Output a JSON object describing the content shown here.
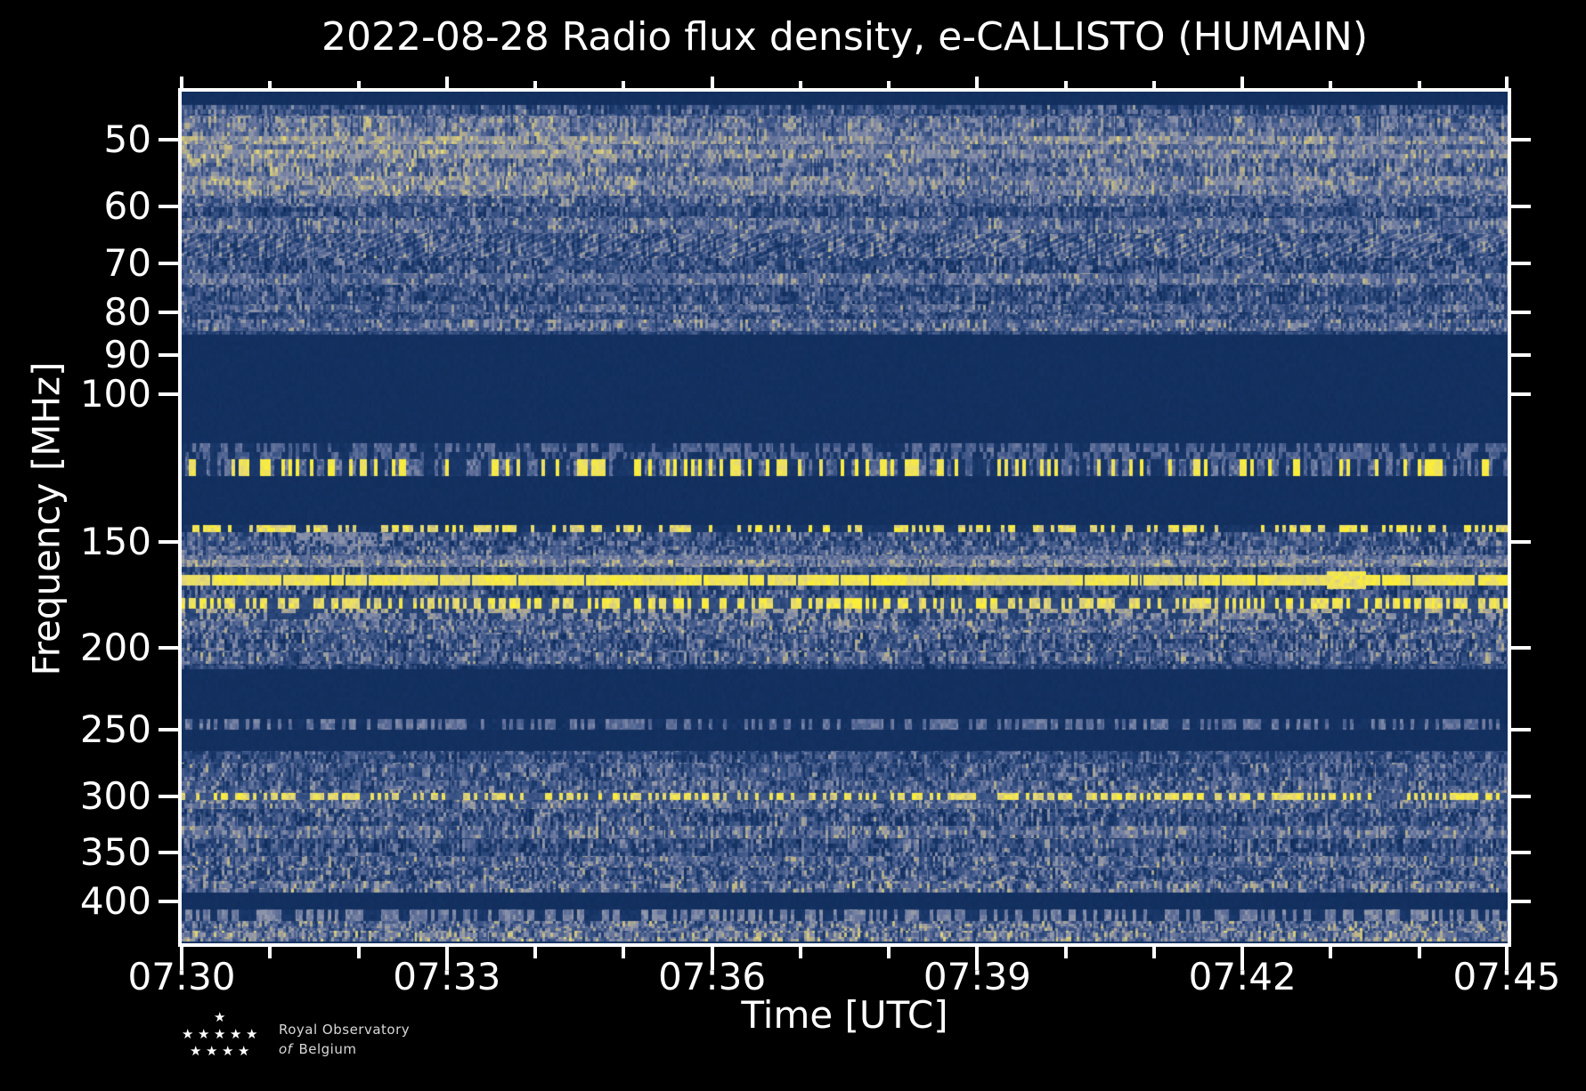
{
  "title": "2022-08-28 Radio flux density, e-CALLISTO (HUMAIN)",
  "axes": {
    "x_label": "Time [UTC]",
    "y_label": "Frequency [MHz]"
  },
  "logo": {
    "line1": "Royal Observatory",
    "line2_word1": "of",
    "line2_word2": "Belgium",
    "star_rows": [
      1,
      5,
      4
    ]
  },
  "chart_data": {
    "type": "heatmap",
    "subtype": "radio-spectrogram",
    "title": "2022-08-28 Radio flux density, e-CALLISTO (HUMAIN)",
    "xlabel": "Time [UTC]",
    "ylabel": "Frequency [MHz]",
    "time_start_utc": "07:30",
    "time_end_utc": "07:45",
    "duration_min": 15,
    "x_ticks": [
      {
        "min": 0,
        "label": "07:30"
      },
      {
        "min": 3,
        "label": "07:33"
      },
      {
        "min": 6,
        "label": "07:36"
      },
      {
        "min": 9,
        "label": "07:39"
      },
      {
        "min": 12,
        "label": "07:42"
      },
      {
        "min": 15,
        "label": "07:45"
      }
    ],
    "x_minor_step_min": 1,
    "y_scale": "log",
    "y_inverted": true,
    "freq_min_mhz": 43.8,
    "freq_max_mhz": 448.5,
    "y_ticks": [
      {
        "f": 50,
        "label": "50"
      },
      {
        "f": 60,
        "label": "60"
      },
      {
        "f": 70,
        "label": "70"
      },
      {
        "f": 80,
        "label": "80"
      },
      {
        "f": 90,
        "label": "90"
      },
      {
        "f": 100,
        "label": "100"
      },
      {
        "f": 150,
        "label": "150"
      },
      {
        "f": 200,
        "label": "200"
      },
      {
        "f": 250,
        "label": "250"
      },
      {
        "f": 300,
        "label": "300"
      },
      {
        "f": 350,
        "label": "350"
      },
      {
        "f": 400,
        "label": "400"
      }
    ],
    "palette": [
      [
        0.0,
        "#0f2c5a"
      ],
      [
        0.18,
        "#1c3a6d"
      ],
      [
        0.35,
        "#3a5486"
      ],
      [
        0.5,
        "#62719a"
      ],
      [
        0.62,
        "#8b93ab"
      ],
      [
        0.75,
        "#bab287"
      ],
      [
        0.88,
        "#e5d978"
      ],
      [
        1.0,
        "#fbee37"
      ]
    ],
    "bands": [
      {
        "f0": 43.8,
        "f1": 45.4,
        "t": "solid",
        "b": 0.05
      },
      {
        "f0": 45.4,
        "f1": 46.8,
        "t": "noise",
        "b": 0.34,
        "s": 0.26
      },
      {
        "f0": 46.8,
        "f1": 49.5,
        "t": "noise",
        "b": 0.46,
        "s": 0.24,
        "L": 1
      },
      {
        "f0": 49.5,
        "f1": 50.5,
        "t": "noise",
        "b": 0.6,
        "s": 0.18,
        "L": 1
      },
      {
        "f0": 50.5,
        "f1": 51.3,
        "t": "noise",
        "b": 0.48,
        "s": 0.22,
        "L": 1
      },
      {
        "f0": 51.3,
        "f1": 52.5,
        "t": "noise",
        "b": 0.57,
        "s": 0.2,
        "L": 1
      },
      {
        "f0": 52.5,
        "f1": 55.2,
        "t": "noise",
        "b": 0.45,
        "s": 0.26,
        "L": 1
      },
      {
        "f0": 55.2,
        "f1": 56.6,
        "t": "noise",
        "b": 0.55,
        "s": 0.2,
        "L": 1
      },
      {
        "f0": 56.6,
        "f1": 58.2,
        "t": "noise",
        "b": 0.51,
        "s": 0.22,
        "L": 1
      },
      {
        "f0": 58.2,
        "f1": 60.0,
        "t": "noise",
        "b": 0.4,
        "s": 0.26
      },
      {
        "f0": 60.0,
        "f1": 61.9,
        "t": "noise",
        "b": 0.32,
        "s": 0.26
      },
      {
        "f0": 61.9,
        "f1": 64.5,
        "t": "noise",
        "b": 0.45,
        "s": 0.24
      },
      {
        "f0": 64.5,
        "f1": 69.0,
        "t": "scallop",
        "b": 0.34,
        "s": 0.26
      },
      {
        "f0": 69.0,
        "f1": 72.0,
        "t": "noise",
        "b": 0.31,
        "s": 0.28
      },
      {
        "f0": 72.0,
        "f1": 74.2,
        "t": "noise",
        "b": 0.47,
        "s": 0.22
      },
      {
        "f0": 74.2,
        "f1": 78.3,
        "t": "noise",
        "b": 0.31,
        "s": 0.28
      },
      {
        "f0": 78.3,
        "f1": 80.0,
        "t": "noise",
        "b": 0.42,
        "s": 0.24
      },
      {
        "f0": 80.0,
        "f1": 81.7,
        "t": "noise",
        "b": 0.33,
        "s": 0.26
      },
      {
        "f0": 81.7,
        "f1": 84.2,
        "t": "noise",
        "b": 0.45,
        "s": 0.26
      },
      {
        "f0": 84.2,
        "f1": 85.1,
        "t": "noise",
        "b": 0.26,
        "s": 0.2
      },
      {
        "f0": 85.1,
        "f1": 114.4,
        "t": "solid",
        "b": 0.05
      },
      {
        "f0": 114.4,
        "f1": 117.2,
        "t": "dash",
        "d": {
          "p": 0.5,
          "hi": 0.45,
          "lo": 0.1
        }
      },
      {
        "f0": 117.2,
        "f1": 125.1,
        "t": "aircraft"
      },
      {
        "f0": 125.1,
        "f1": 143.1,
        "t": "solid",
        "b": 0.05
      },
      {
        "f0": 143.1,
        "f1": 145.9,
        "t": "dash",
        "d": {
          "p": 0.45,
          "hi": 0.9,
          "lo": 0.12
        }
      },
      {
        "f0": 145.9,
        "f1": 151.6,
        "t": "noise",
        "b": 0.34,
        "s": 0.28
      },
      {
        "f0": 151.6,
        "f1": 155.3,
        "t": "noise",
        "b": 0.38,
        "s": 0.28
      },
      {
        "f0": 155.3,
        "f1": 157.5,
        "t": "noise",
        "b": 0.52,
        "s": 0.15
      },
      {
        "f0": 157.5,
        "f1": 160.5,
        "t": "noise",
        "b": 0.57,
        "s": 0.22
      },
      {
        "f0": 160.5,
        "f1": 163.9,
        "t": "noise",
        "b": 0.31,
        "s": 0.28
      },
      {
        "f0": 163.9,
        "f1": 168.6,
        "t": "line",
        "b": 0.94
      },
      {
        "f0": 168.6,
        "f1": 174.6,
        "t": "noise",
        "b": 0.31,
        "s": 0.3
      },
      {
        "f0": 174.6,
        "f1": 179.6,
        "t": "dash",
        "d": {
          "p": 0.5,
          "hi": 0.92,
          "lo": 0.3
        }
      },
      {
        "f0": 179.6,
        "f1": 182.2,
        "t": "dash",
        "d": {
          "p": 0.5,
          "hi": 0.7,
          "lo": 0.25
        }
      },
      {
        "f0": 182.2,
        "f1": 185.1,
        "t": "dash",
        "d": {
          "p": 0.45,
          "hi": 0.6,
          "lo": 0.25
        }
      },
      {
        "f0": 185.1,
        "f1": 191.9,
        "t": "noise",
        "b": 0.43,
        "s": 0.28
      },
      {
        "f0": 191.9,
        "f1": 201.8,
        "t": "noise",
        "b": 0.36,
        "s": 0.3
      },
      {
        "f0": 201.8,
        "f1": 209.3,
        "t": "noise",
        "b": 0.39,
        "s": 0.3
      },
      {
        "f0": 209.3,
        "f1": 211.9,
        "t": "noise",
        "b": 0.26,
        "s": 0.24
      },
      {
        "f0": 211.9,
        "f1": 243.1,
        "t": "solid",
        "b": 0.05
      },
      {
        "f0": 243.1,
        "f1": 250.0,
        "t": "dash",
        "d": {
          "p": 0.5,
          "hi": 0.5,
          "lo": 0.08
        }
      },
      {
        "f0": 250.0,
        "f1": 265.4,
        "t": "solid",
        "b": 0.05
      },
      {
        "f0": 265.4,
        "f1": 274.0,
        "t": "noise",
        "b": 0.31,
        "s": 0.26
      },
      {
        "f0": 274.0,
        "f1": 287.8,
        "t": "noise",
        "b": 0.36,
        "s": 0.28
      },
      {
        "f0": 287.8,
        "f1": 297.1,
        "t": "noise",
        "b": 0.39,
        "s": 0.28
      },
      {
        "f0": 297.1,
        "f1": 302.9,
        "t": "dash",
        "d": {
          "p": 0.55,
          "hi": 0.9,
          "lo": 0.35
        }
      },
      {
        "f0": 302.9,
        "f1": 311.0,
        "t": "noise",
        "b": 0.43,
        "s": 0.26
      },
      {
        "f0": 311.0,
        "f1": 325.4,
        "t": "noise",
        "b": 0.33,
        "s": 0.3
      },
      {
        "f0": 325.4,
        "f1": 336.3,
        "t": "noise",
        "b": 0.46,
        "s": 0.26
      },
      {
        "f0": 336.3,
        "f1": 353.6,
        "t": "noise",
        "b": 0.31,
        "s": 0.3
      },
      {
        "f0": 353.6,
        "f1": 364.4,
        "t": "noise",
        "b": 0.43,
        "s": 0.28
      },
      {
        "f0": 364.4,
        "f1": 378.1,
        "t": "noise",
        "b": 0.36,
        "s": 0.3
      },
      {
        "f0": 378.1,
        "f1": 390.3,
        "t": "noise",
        "b": 0.46,
        "s": 0.3
      },
      {
        "f0": 390.3,
        "f1": 408.6,
        "t": "solid",
        "b": 0.05
      },
      {
        "f0": 408.6,
        "f1": 421.6,
        "t": "dash",
        "d": {
          "p": 0.55,
          "hi": 0.55,
          "lo": 0.12
        }
      },
      {
        "f0": 421.6,
        "f1": 433.3,
        "t": "noise",
        "b": 0.46,
        "s": 0.3
      },
      {
        "f0": 433.3,
        "f1": 446.3,
        "t": "noise",
        "b": 0.52,
        "s": 0.3
      },
      {
        "f0": 446.3,
        "f1": 448.5,
        "t": "solid",
        "b": 0.07
      }
    ],
    "features": [
      {
        "desc": "bright burst on 166 MHz channel near 07:43",
        "t": [
          12.95,
          13.4
        ],
        "f": [
          162.5,
          170.5
        ],
        "v": 0.93,
        "density": 1.0
      },
      {
        "desc": "pale emission patch 146-151 MHz near 07:31-07:32",
        "t": [
          1.25,
          2.4
        ],
        "f": [
          146.0,
          151.5
        ],
        "v": 0.62,
        "density": 0.55
      }
    ]
  }
}
